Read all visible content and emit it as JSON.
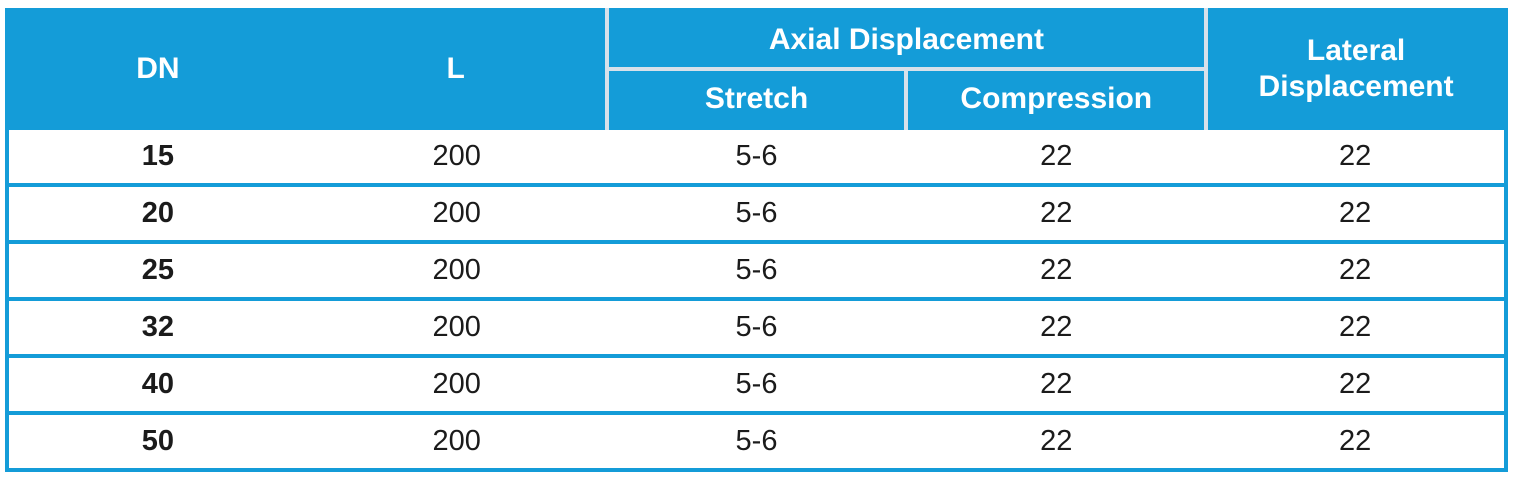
{
  "chart_data": {
    "type": "table",
    "header": {
      "dn": "DN",
      "l": "L",
      "axial_group": "Axial Displacement",
      "stretch": "Stretch",
      "compression": "Compression",
      "lateral": "Lateral Displacement"
    },
    "columns": [
      "DN",
      "L",
      "Stretch",
      "Compression",
      "Lateral Displacement"
    ],
    "column_groups": [
      {
        "label": "Axial Displacement",
        "spans": [
          "Stretch",
          "Compression"
        ]
      }
    ],
    "rows": [
      [
        "15",
        "200",
        "5-6",
        "22",
        "22"
      ],
      [
        "20",
        "200",
        "5-6",
        "22",
        "22"
      ],
      [
        "25",
        "200",
        "5-6",
        "22",
        "22"
      ],
      [
        "32",
        "200",
        "5-6",
        "22",
        "22"
      ],
      [
        "40",
        "200",
        "5-6",
        "22",
        "22"
      ],
      [
        "50",
        "200",
        "5-6",
        "22",
        "22"
      ]
    ]
  },
  "colors": {
    "header_bg": "#149CD8",
    "table_border": "#149CD8",
    "header_divider": "#D8E1EA",
    "header_text": "#FFFFFF",
    "body_text": "#1B1B1B",
    "body_bg": "#FFFFFF"
  }
}
